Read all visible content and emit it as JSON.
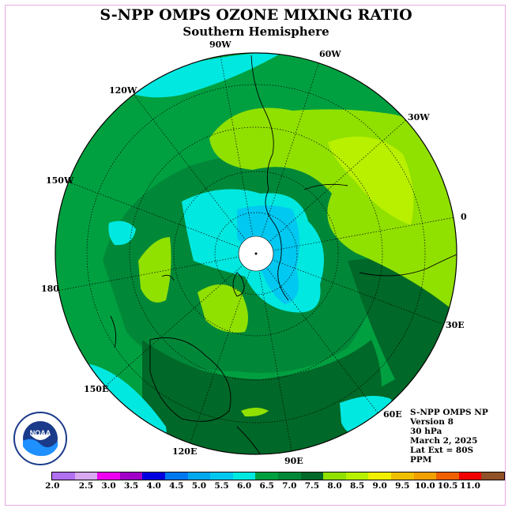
{
  "title": "S-NPP OMPS OZONE MIXING RATIO",
  "subtitle": "Southern Hemisphere",
  "longitude_labels": {
    "w90": "90W",
    "w60": "60W",
    "w30": "30W",
    "e0": "0",
    "w120": "120W",
    "w150": "150W",
    "d180": "180",
    "e30": "30E",
    "e60": "60E",
    "e90": "90E",
    "e120": "120E",
    "e150": "150E"
  },
  "info": {
    "instrument": "S-NPP OMPS NP",
    "version": "Version 8",
    "level": "30 hPa",
    "date": "March 2, 2025",
    "lat_ext": "Lat Ext = 80S",
    "units": "PPM"
  },
  "logo_text": "NOAA",
  "colorbar": {
    "colors": [
      "#b070f0",
      "#d8a8f0",
      "#f000f0",
      "#a000c8",
      "#0000e0",
      "#0078f0",
      "#00a8f0",
      "#00c8f0",
      "#00e8e0",
      "#00a040",
      "#008838",
      "#006828",
      "#90e000",
      "#b8f000",
      "#f0f000",
      "#f0c000",
      "#f0a000",
      "#f06000",
      "#f00000",
      "#905028"
    ],
    "ticks": [
      "2.0",
      "2.5",
      "3.0",
      "3.5",
      "4.0",
      "4.5",
      "5.0",
      "5.5",
      "6.0",
      "6.5",
      "7.0",
      "7.5",
      "8.0",
      "8.5",
      "9.0",
      "9.5",
      "10.0",
      "10.5",
      "11.0"
    ]
  }
}
